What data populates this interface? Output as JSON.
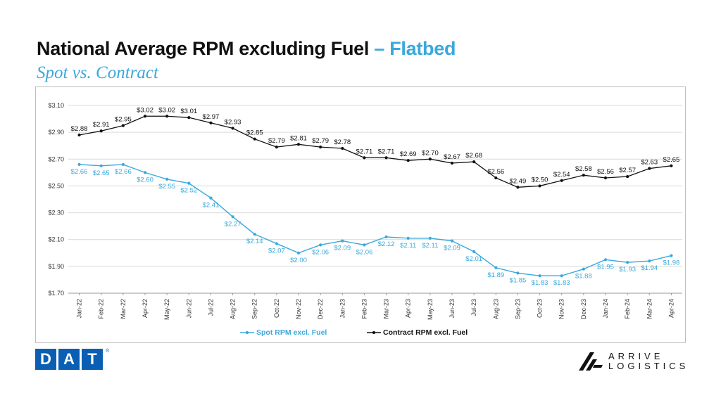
{
  "header": {
    "title_main": "National Average RPM excluding Fuel",
    "title_dash": " – ",
    "title_accent": "Flatbed",
    "subtitle": "Spot vs. Contract"
  },
  "logos": {
    "dat_letters": [
      "D",
      "A",
      "T"
    ],
    "dat_reg": "®",
    "arrive_line1": "ARRIVE",
    "arrive_line2": "LOGISTICS"
  },
  "colors": {
    "spot": "#3aa8dc",
    "contract": "#111111",
    "accent": "#3aa8dc",
    "dat_blue": "#0a5fb4"
  },
  "chart_data": {
    "type": "line",
    "categories": [
      "Jan-22",
      "Feb-22",
      "Mar-22",
      "Apr-22",
      "May-22",
      "Jun-22",
      "Jul-22",
      "Aug-22",
      "Sep-22",
      "Oct-22",
      "Nov-22",
      "Dec-22",
      "Jan-23",
      "Feb-23",
      "Mar-23",
      "Apr-23",
      "May-23",
      "Jun-23",
      "Jul-23",
      "Aug-23",
      "Sep-23",
      "Oct-23",
      "Nov-23",
      "Dec-23",
      "Jan-24",
      "Feb-24",
      "Mar-24",
      "Apr-24"
    ],
    "series": [
      {
        "name": "Spot RPM excl. Fuel",
        "values": [
          2.66,
          2.65,
          2.66,
          2.6,
          2.55,
          2.52,
          2.41,
          2.27,
          2.14,
          2.07,
          2.0,
          2.06,
          2.09,
          2.06,
          2.12,
          2.11,
          2.11,
          2.09,
          2.01,
          1.89,
          1.85,
          1.83,
          1.83,
          1.88,
          1.95,
          1.93,
          1.94,
          1.98
        ],
        "labels": [
          "$2.66",
          "$2.65",
          "$2.66",
          "$2.60",
          "$2.55",
          "$2.52",
          "$2.41",
          "$2.27",
          "$2.14",
          "$2.07",
          "$2.00",
          "$2.06",
          "$2.09",
          "$2.06",
          "$2.12",
          "$2.11",
          "$2.11",
          "$2.09",
          "$2.01",
          "$1.89",
          "$1.85",
          "$1.83",
          "$1.83",
          "$1.88",
          "$1.95",
          "$1.93",
          "$1.94",
          "$1.98"
        ]
      },
      {
        "name": "Contract RPM excl. Fuel",
        "values": [
          2.88,
          2.91,
          2.95,
          3.02,
          3.02,
          3.01,
          2.97,
          2.93,
          2.85,
          2.79,
          2.81,
          2.79,
          2.78,
          2.71,
          2.71,
          2.69,
          2.7,
          2.67,
          2.68,
          2.56,
          2.49,
          2.5,
          2.54,
          2.58,
          2.56,
          2.57,
          2.63,
          2.65
        ],
        "labels": [
          "$2.88",
          "$2.91",
          "$2.95",
          "$3.02",
          "$3.02",
          "$3.01",
          "$2.97",
          "$2.93",
          "$2.85",
          "$2.79",
          "$2.81",
          "$2.79",
          "$2.78",
          "$2.71",
          "$2.71",
          "$2.69",
          "$2.70",
          "$2.67",
          "$2.68",
          "$2.56",
          "$2.49",
          "$2.50",
          "$2.54",
          "$2.58",
          "$2.56",
          "$2.57",
          "$2.63",
          "$2.65"
        ]
      }
    ],
    "yticks": [
      1.7,
      1.9,
      2.1,
      2.3,
      2.5,
      2.7,
      2.9,
      3.1
    ],
    "ytick_labels": [
      "$1.70",
      "$1.90",
      "$2.10",
      "$2.30",
      "$2.50",
      "$2.70",
      "$2.90",
      "$3.10"
    ],
    "ylim": [
      1.7,
      3.1
    ],
    "grid": true,
    "legend_position": "bottom"
  }
}
